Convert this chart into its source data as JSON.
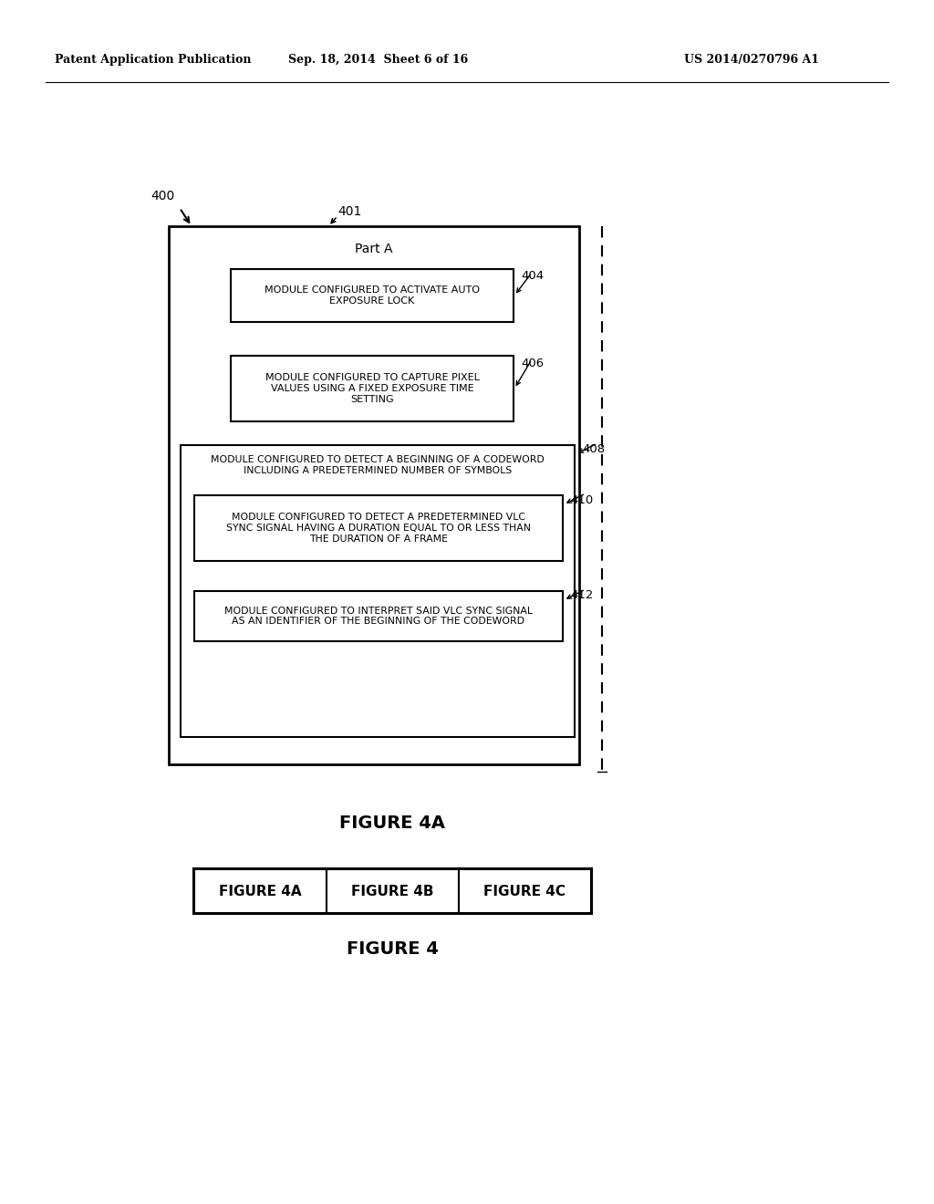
{
  "header_left": "Patent Application Publication",
  "header_mid": "Sep. 18, 2014  Sheet 6 of 16",
  "header_right": "US 2014/0270796 A1",
  "fig_label_400": "400",
  "fig_label_401": "401",
  "part_a_label": "Part A",
  "box404_text": "MODULE CONFIGURED TO ACTIVATE AUTO\nEXPOSURE LOCK",
  "box404_label": "404",
  "box406_text": "MODULE CONFIGURED TO CAPTURE PIXEL\nVALUES USING A FIXED EXPOSURE TIME\nSETTING",
  "box406_label": "406",
  "box408_outer_text": "MODULE CONFIGURED TO DETECT A BEGINNING OF A CODEWORD\nINCLUDING A PREDETERMINED NUMBER OF SYMBOLS",
  "box408_label": "408",
  "box410_text": "MODULE CONFIGURED TO DETECT A PREDETERMINED VLC\nSYNC SIGNAL HAVING A DURATION EQUAL TO OR LESS THAN\nTHE DURATION OF A FRAME",
  "box410_label": "410",
  "box412_text": "MODULE CONFIGURED TO INTERPRET SAID VLC SYNC SIGNAL\nAS AN IDENTIFIER OF THE BEGINNING OF THE CODEWORD",
  "box412_label": "412",
  "figure4a_label": "FIGURE 4A",
  "fig4_panel_labels": [
    "FIGURE 4A",
    "FIGURE 4B",
    "FIGURE 4C"
  ],
  "figure4_label": "FIGURE 4",
  "bg_color": "#ffffff",
  "box_color": "#000000",
  "text_color": "#000000"
}
